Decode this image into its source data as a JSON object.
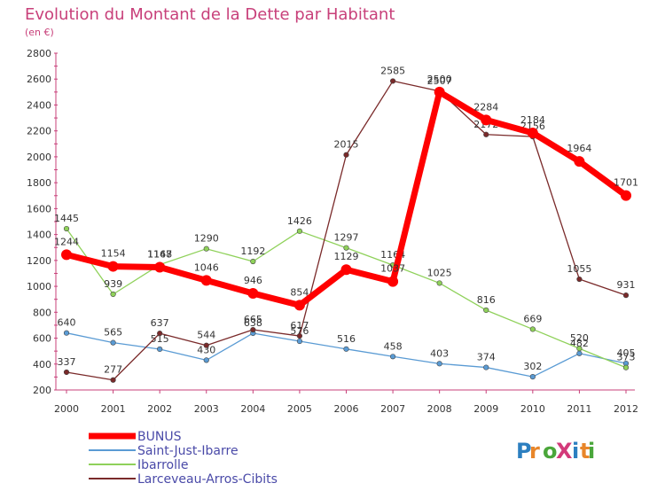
{
  "chart_data": {
    "type": "line",
    "title": "Evolution du Montant de la Dette par Habitant",
    "subtitle": "(en €)",
    "xlabel": "",
    "ylabel": "",
    "x": [
      "2000",
      "2001",
      "2002",
      "2003",
      "2004",
      "2005",
      "2006",
      "2007",
      "2008",
      "2009",
      "2010",
      "2011",
      "2012"
    ],
    "y_ticks": [
      200,
      400,
      600,
      800,
      1000,
      1200,
      1400,
      1600,
      1800,
      2000,
      2200,
      2400,
      2600,
      2800
    ],
    "ylim": [
      200,
      2800
    ],
    "grid": false,
    "legend_position": "bottom-left",
    "series": [
      {
        "name": "Saint-Just-Ibarre",
        "color": "#5a9bd4",
        "values": [
          640,
          565,
          515,
          430,
          638,
          576,
          516,
          458,
          403,
          374,
          302,
          482,
          405
        ]
      },
      {
        "name": "Ibarrolle",
        "color": "#8fd15a",
        "values": [
          1445,
          939,
          1167,
          1290,
          1192,
          1426,
          1297,
          1164,
          1025,
          816,
          669,
          520,
          373
        ]
      },
      {
        "name": "Larceveau-Arros-Cibits",
        "color": "#7a2a2a",
        "values": [
          337,
          277,
          637,
          544,
          665,
          617,
          2015,
          2585,
          2507,
          2172,
          2156,
          1055,
          931
        ]
      },
      {
        "name": "BUNUS",
        "color": "#ff0000",
        "values": [
          1244,
          1154,
          1148,
          1046,
          946,
          854,
          1129,
          1037,
          2500,
          2284,
          2184,
          1964,
          1701
        ]
      }
    ]
  },
  "logo_text": "ProXiti"
}
